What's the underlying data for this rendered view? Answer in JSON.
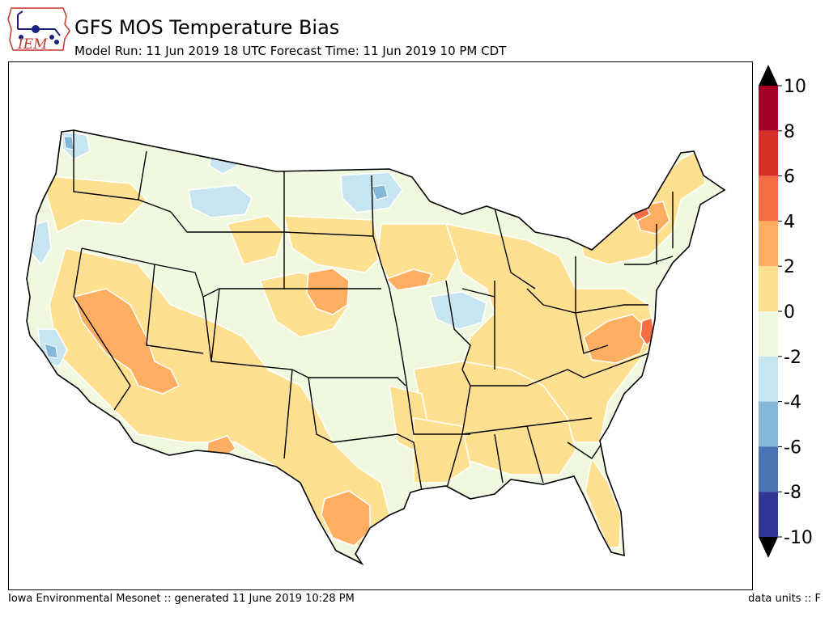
{
  "header": {
    "logo_text": "IEM",
    "title": "GFS MOS Temperature Bias",
    "subtitle": "Model Run: 11 Jun 2019 18 UTC Forecast Time: 11 Jun 2019 10 PM CDT"
  },
  "footer": {
    "credit": "Iowa Environmental Mesonet :: generated 11 June 2019 10:28 PM",
    "units": "data units :: F"
  },
  "colorbar": {
    "ticks": [
      "10",
      "8",
      "6",
      "4",
      "2",
      "0",
      "-2",
      "-4",
      "-6",
      "-8",
      "-10"
    ],
    "bins": [
      "#a50026",
      "#d73027",
      "#f46d43",
      "#fdae61",
      "#fee090",
      "#f0f8e0",
      "#c6e5f0",
      "#85b7d8",
      "#4a74b4",
      "#313695"
    ],
    "extend_colors": {
      "over": "#000000",
      "under": "#000000"
    }
  },
  "map": {
    "region": "CONUS",
    "variable": "temperature bias",
    "colors": {
      "background": "#f0f8e0",
      "plus2_4": "#fee090",
      "plus4_6": "#fdae61",
      "plus6_8": "#f46d43",
      "minus2_4": "#c6e5f0",
      "minus4_6": "#85b7d8"
    }
  }
}
